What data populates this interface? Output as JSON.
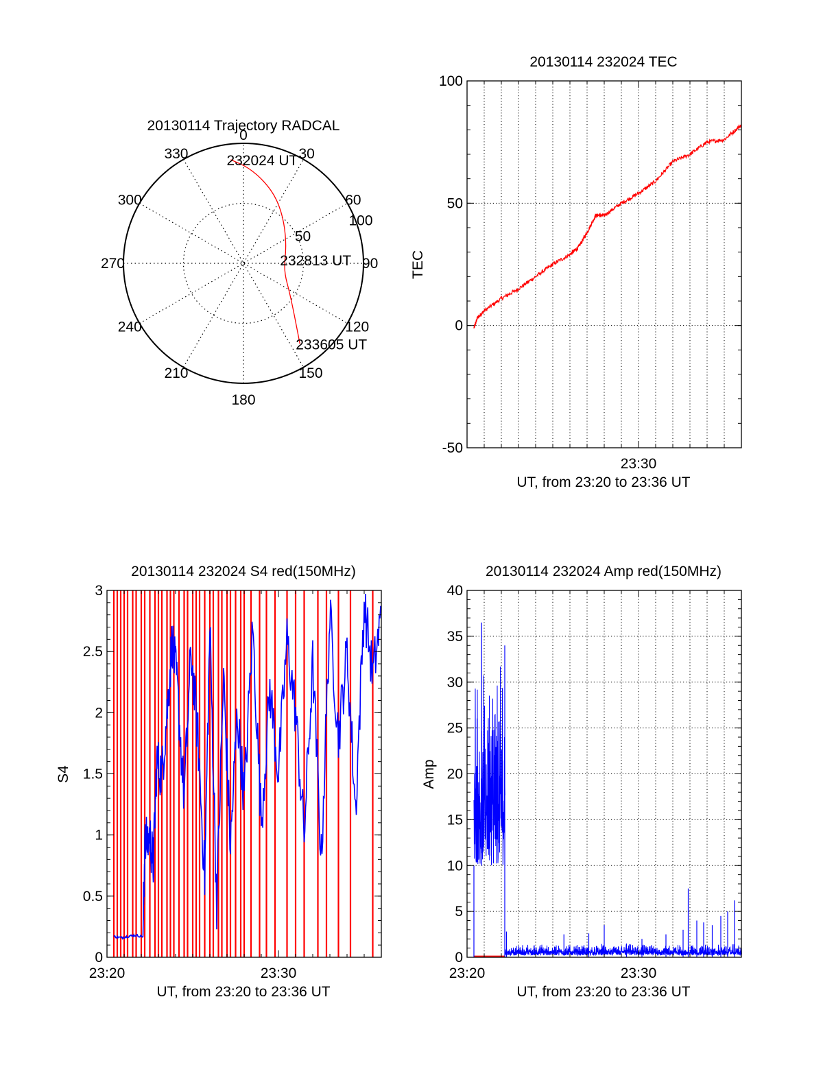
{
  "figure_title": "",
  "chart_data": [
    {
      "type": "polar",
      "title": "20130114 Trajectory RADCAL",
      "angle_labels": [
        "0",
        "30",
        "60",
        "90",
        "120",
        "150",
        "180",
        "210",
        "240",
        "270",
        "300",
        "330"
      ],
      "radius_labels": [
        "50",
        "100"
      ],
      "radius_max": 100,
      "trajectory": {
        "color": "#ff0000",
        "points": [
          {
            "azimuth": 353,
            "radius": 87
          },
          {
            "azimuth": 3,
            "radius": 80
          },
          {
            "azimuth": 15,
            "radius": 70
          },
          {
            "azimuth": 28,
            "radius": 60
          },
          {
            "azimuth": 45,
            "radius": 48
          },
          {
            "azimuth": 70,
            "radius": 38
          },
          {
            "azimuth": 100,
            "radius": 34
          },
          {
            "azimuth": 125,
            "radius": 48
          },
          {
            "azimuth": 145,
            "radius": 82
          }
        ]
      },
      "annotations": [
        {
          "text": "232024 UT",
          "azimuth": 353,
          "radius": 87
        },
        {
          "text": "232813 UT",
          "azimuth": 85,
          "radius": 34
        },
        {
          "text": "233605 UT",
          "azimuth": 145,
          "radius": 82
        }
      ]
    },
    {
      "type": "line",
      "title": "20130114 232024 TEC",
      "xlabel": "UT, from 23:20 to 23:36 UT",
      "ylabel": "TEC",
      "x_unit": "minutes after 23:20",
      "xlim": [
        0,
        16
      ],
      "ylim": [
        -50,
        100
      ],
      "yticks": [
        "-50",
        "0",
        "50",
        "100"
      ],
      "xticks": [
        {
          "value": 10,
          "label": "23:30"
        }
      ],
      "grid": true,
      "series": [
        {
          "color": "#ff0000",
          "x": [
            0.4,
            0.6,
            1,
            2,
            3,
            4,
            5,
            6,
            6.5,
            7,
            7.5,
            8,
            9,
            10,
            11,
            12,
            13,
            14,
            15,
            16
          ],
          "y": [
            -1,
            3,
            6,
            11,
            15,
            20,
            25,
            29,
            32,
            38,
            45,
            45,
            50,
            54,
            59,
            67,
            70,
            75,
            76,
            82
          ]
        }
      ]
    },
    {
      "type": "line",
      "title": "20130114 232024 S4 red(150MHz)",
      "xlabel": "UT, from 23:20 to 23:36 UT",
      "ylabel": "S4",
      "xlim": [
        0,
        16
      ],
      "ylim": [
        0,
        3
      ],
      "yticks": [
        "0",
        "0.5",
        "1",
        "1.5",
        "2",
        "2.5",
        "3"
      ],
      "xticks": [
        {
          "value": 0,
          "label": "23:20"
        },
        {
          "value": 10,
          "label": "23:30"
        }
      ],
      "grid": false,
      "series": [
        {
          "color": "#ff0000",
          "style": "vertical-spikes",
          "x_spikes": [
            0.4,
            0.6,
            0.8,
            1.0,
            1.2,
            1.5,
            1.7,
            2.0,
            2.2,
            2.5,
            2.8,
            3.0,
            3.2,
            3.5,
            3.7,
            3.9,
            4.2,
            4.5,
            4.7,
            5.0,
            5.2,
            5.4,
            5.7,
            6.0,
            6.2,
            6.5,
            6.7,
            7.0,
            7.2,
            7.5,
            7.8,
            8.0,
            8.4,
            8.9,
            9.3,
            9.8,
            10.5,
            11.0,
            11.5,
            12.3,
            12.8,
            13.5,
            14.2,
            15.5
          ],
          "y_top": 3
        },
        {
          "color": "#0000ff",
          "x": [
            0.4,
            0.8,
            1.2,
            1.6,
            2.1,
            2.2,
            2.5,
            2.7,
            2.9,
            3.2,
            3.5,
            3.8,
            4.1,
            4.5,
            4.9,
            5.3,
            5.7,
            6.0,
            6.4,
            6.8,
            7.2,
            7.6,
            8.0,
            8.5,
            9.0,
            9.5,
            10.0,
            10.5,
            11.0,
            11.5,
            12.0,
            12.5,
            13.0,
            13.5,
            14.0,
            14.5,
            15.0,
            15.5,
            16.0
          ],
          "y": [
            0.17,
            0.16,
            0.17,
            0.18,
            0.17,
            0.9,
            1.0,
            0.75,
            1.6,
            1.5,
            2.0,
            2.6,
            2.2,
            1.3,
            2.5,
            1.8,
            0.65,
            2.7,
            0.45,
            2.3,
            0.9,
            2.0,
            1.3,
            2.7,
            1.1,
            2.2,
            1.5,
            2.6,
            2.0,
            1.0,
            2.4,
            0.8,
            2.8,
            1.8,
            2.5,
            1.2,
            2.9,
            2.3,
            2.8
          ]
        }
      ]
    },
    {
      "type": "line",
      "title": "20130114 232024 Amp red(150MHz)",
      "xlabel": "UT, from 23:20 to 23:36 UT",
      "ylabel": "Amp",
      "xlim": [
        0,
        16
      ],
      "ylim": [
        0,
        40
      ],
      "yticks": [
        "0",
        "5",
        "10",
        "15",
        "20",
        "25",
        "30",
        "35",
        "40"
      ],
      "xticks": [
        {
          "value": 0,
          "label": "23:20"
        },
        {
          "value": 10,
          "label": "23:30"
        }
      ],
      "grid": true,
      "series": [
        {
          "color": "#ff0000",
          "x": [
            0.4,
            2.2
          ],
          "y": [
            0.1,
            0.1
          ]
        },
        {
          "color": "#0000ff",
          "style": "noise-band",
          "segments": [
            {
              "x_start": 0.4,
              "x_end": 2.2,
              "low": 10,
              "high": 34,
              "peak": 36.5
            },
            {
              "x_start": 2.2,
              "x_end": 16,
              "low": 0.2,
              "high": 1.5,
              "peak": 2.5
            }
          ],
          "spikes": [
            {
              "x": 2.3,
              "y": 2.8
            },
            {
              "x": 7.1,
              "y": 2.6
            },
            {
              "x": 8.0,
              "y": 3.5
            },
            {
              "x": 9.3,
              "y": 1.5
            },
            {
              "x": 10.2,
              "y": 2.0
            },
            {
              "x": 11.6,
              "y": 2.5
            },
            {
              "x": 12.6,
              "y": 3.0
            },
            {
              "x": 12.9,
              "y": 7.5
            },
            {
              "x": 13.4,
              "y": 4.0
            },
            {
              "x": 13.8,
              "y": 3.8
            },
            {
              "x": 14.3,
              "y": 3.5
            },
            {
              "x": 14.8,
              "y": 4.5
            },
            {
              "x": 15.2,
              "y": 5.0
            },
            {
              "x": 15.6,
              "y": 6.2
            }
          ]
        }
      ]
    }
  ]
}
